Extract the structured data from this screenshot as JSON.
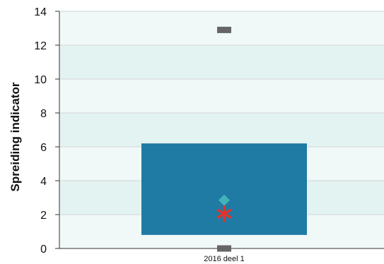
{
  "chart_data": {
    "type": "box",
    "ylabel": "Spreiding indicator",
    "ylim": [
      0,
      14
    ],
    "yticks": [
      0,
      2,
      4,
      6,
      8,
      10,
      12,
      14
    ],
    "categories": [
      "2016 deel 1"
    ],
    "box": {
      "q1": 0.8,
      "q3": 6.2,
      "min": 0,
      "max": 12.9,
      "mean": 2.85,
      "median": 2.05
    },
    "grid": true,
    "colors": {
      "box": "#1f7aa4",
      "mean_marker": "#44b3b9",
      "median_marker": "#e0352b",
      "whisker_cap": "#666666",
      "band_light": "#f0f8f8",
      "band_dark": "#e3f3f2"
    }
  }
}
